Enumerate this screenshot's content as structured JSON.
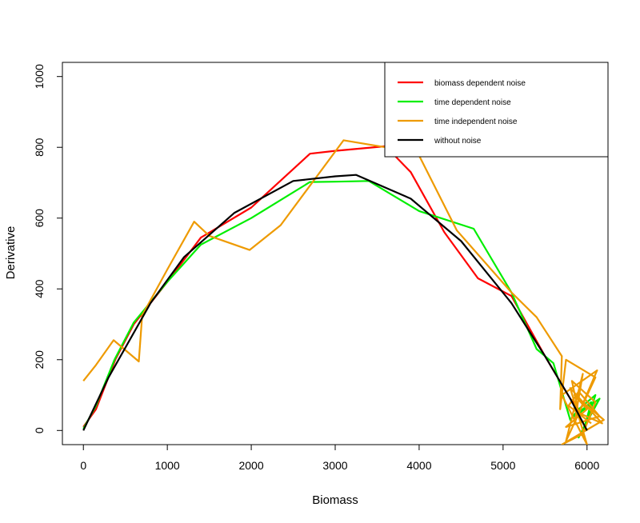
{
  "chart_data": {
    "type": "line",
    "title": "",
    "xlabel": "Biomass",
    "ylabel": "Derivative",
    "xlim": [
      -250,
      6250
    ],
    "ylim": [
      -40,
      1040
    ],
    "xticks": [
      0,
      1000,
      2000,
      3000,
      4000,
      5000,
      6000
    ],
    "yticks": [
      0,
      200,
      400,
      600,
      800,
      1000
    ],
    "grid": false,
    "legend_position": "top-right",
    "series": [
      {
        "name": "biomass dependent noise",
        "color": "#ff0000",
        "x": [
          0,
          150,
          380,
          600,
          1000,
          1400,
          2000,
          2700,
          3000,
          3600,
          3900,
          4300,
          4700,
          5100,
          5500,
          5800,
          5900,
          5950
        ],
        "y": [
          10,
          60,
          200,
          300,
          420,
          545,
          630,
          782,
          790,
          803,
          730,
          560,
          430,
          380,
          210,
          90,
          60,
          40
        ]
      },
      {
        "name": "time dependent noise",
        "color": "#00ee00",
        "x": [
          0,
          150,
          370,
          600,
          1000,
          1400,
          2000,
          2700,
          3000,
          3400,
          4000,
          4650,
          5100,
          5400,
          5600,
          5800,
          5900,
          6000,
          6100,
          5950,
          6050,
          5850,
          6150,
          5900,
          6050,
          5980
        ],
        "y": [
          5,
          70,
          200,
          305,
          420,
          525,
          600,
          702,
          703,
          705,
          620,
          570,
          390,
          230,
          190,
          30,
          60,
          80,
          100,
          -10,
          80,
          40,
          90,
          -20,
          50,
          20
        ]
      },
      {
        "name": "time independent noise",
        "color": "#ee9a00",
        "x": [
          0,
          150,
          360,
          660,
          700,
          1000,
          1320,
          1500,
          1980,
          2350,
          3100,
          3600,
          3950,
          4450,
          5100,
          5400,
          5700,
          5680,
          5750,
          6100,
          5750,
          5950,
          5850,
          6120,
          5700,
          6000,
          5800,
          6180,
          5900,
          5820,
          6100,
          5950,
          5700,
          6200,
          5850,
          6000,
          5750,
          6150,
          5900,
          5780,
          6050
        ],
        "y": [
          140,
          185,
          255,
          195,
          325,
          455,
          590,
          550,
          510,
          580,
          820,
          800,
          800,
          565,
          390,
          320,
          210,
          60,
          200,
          150,
          -30,
          160,
          20,
          170,
          100,
          -40,
          120,
          20,
          50,
          140,
          80,
          -10,
          -40,
          30,
          100,
          60,
          10,
          40,
          110,
          70,
          20
        ]
      },
      {
        "name": "without noise",
        "color": "#000000",
        "x": [
          0,
          300,
          800,
          1200,
          1800,
          2500,
          3000,
          3250,
          3900,
          4500,
          5100,
          5500,
          5800,
          6000
        ],
        "y": [
          0,
          150,
          360,
          490,
          615,
          705,
          718,
          722,
          655,
          535,
          360,
          210,
          90,
          0
        ]
      }
    ]
  }
}
